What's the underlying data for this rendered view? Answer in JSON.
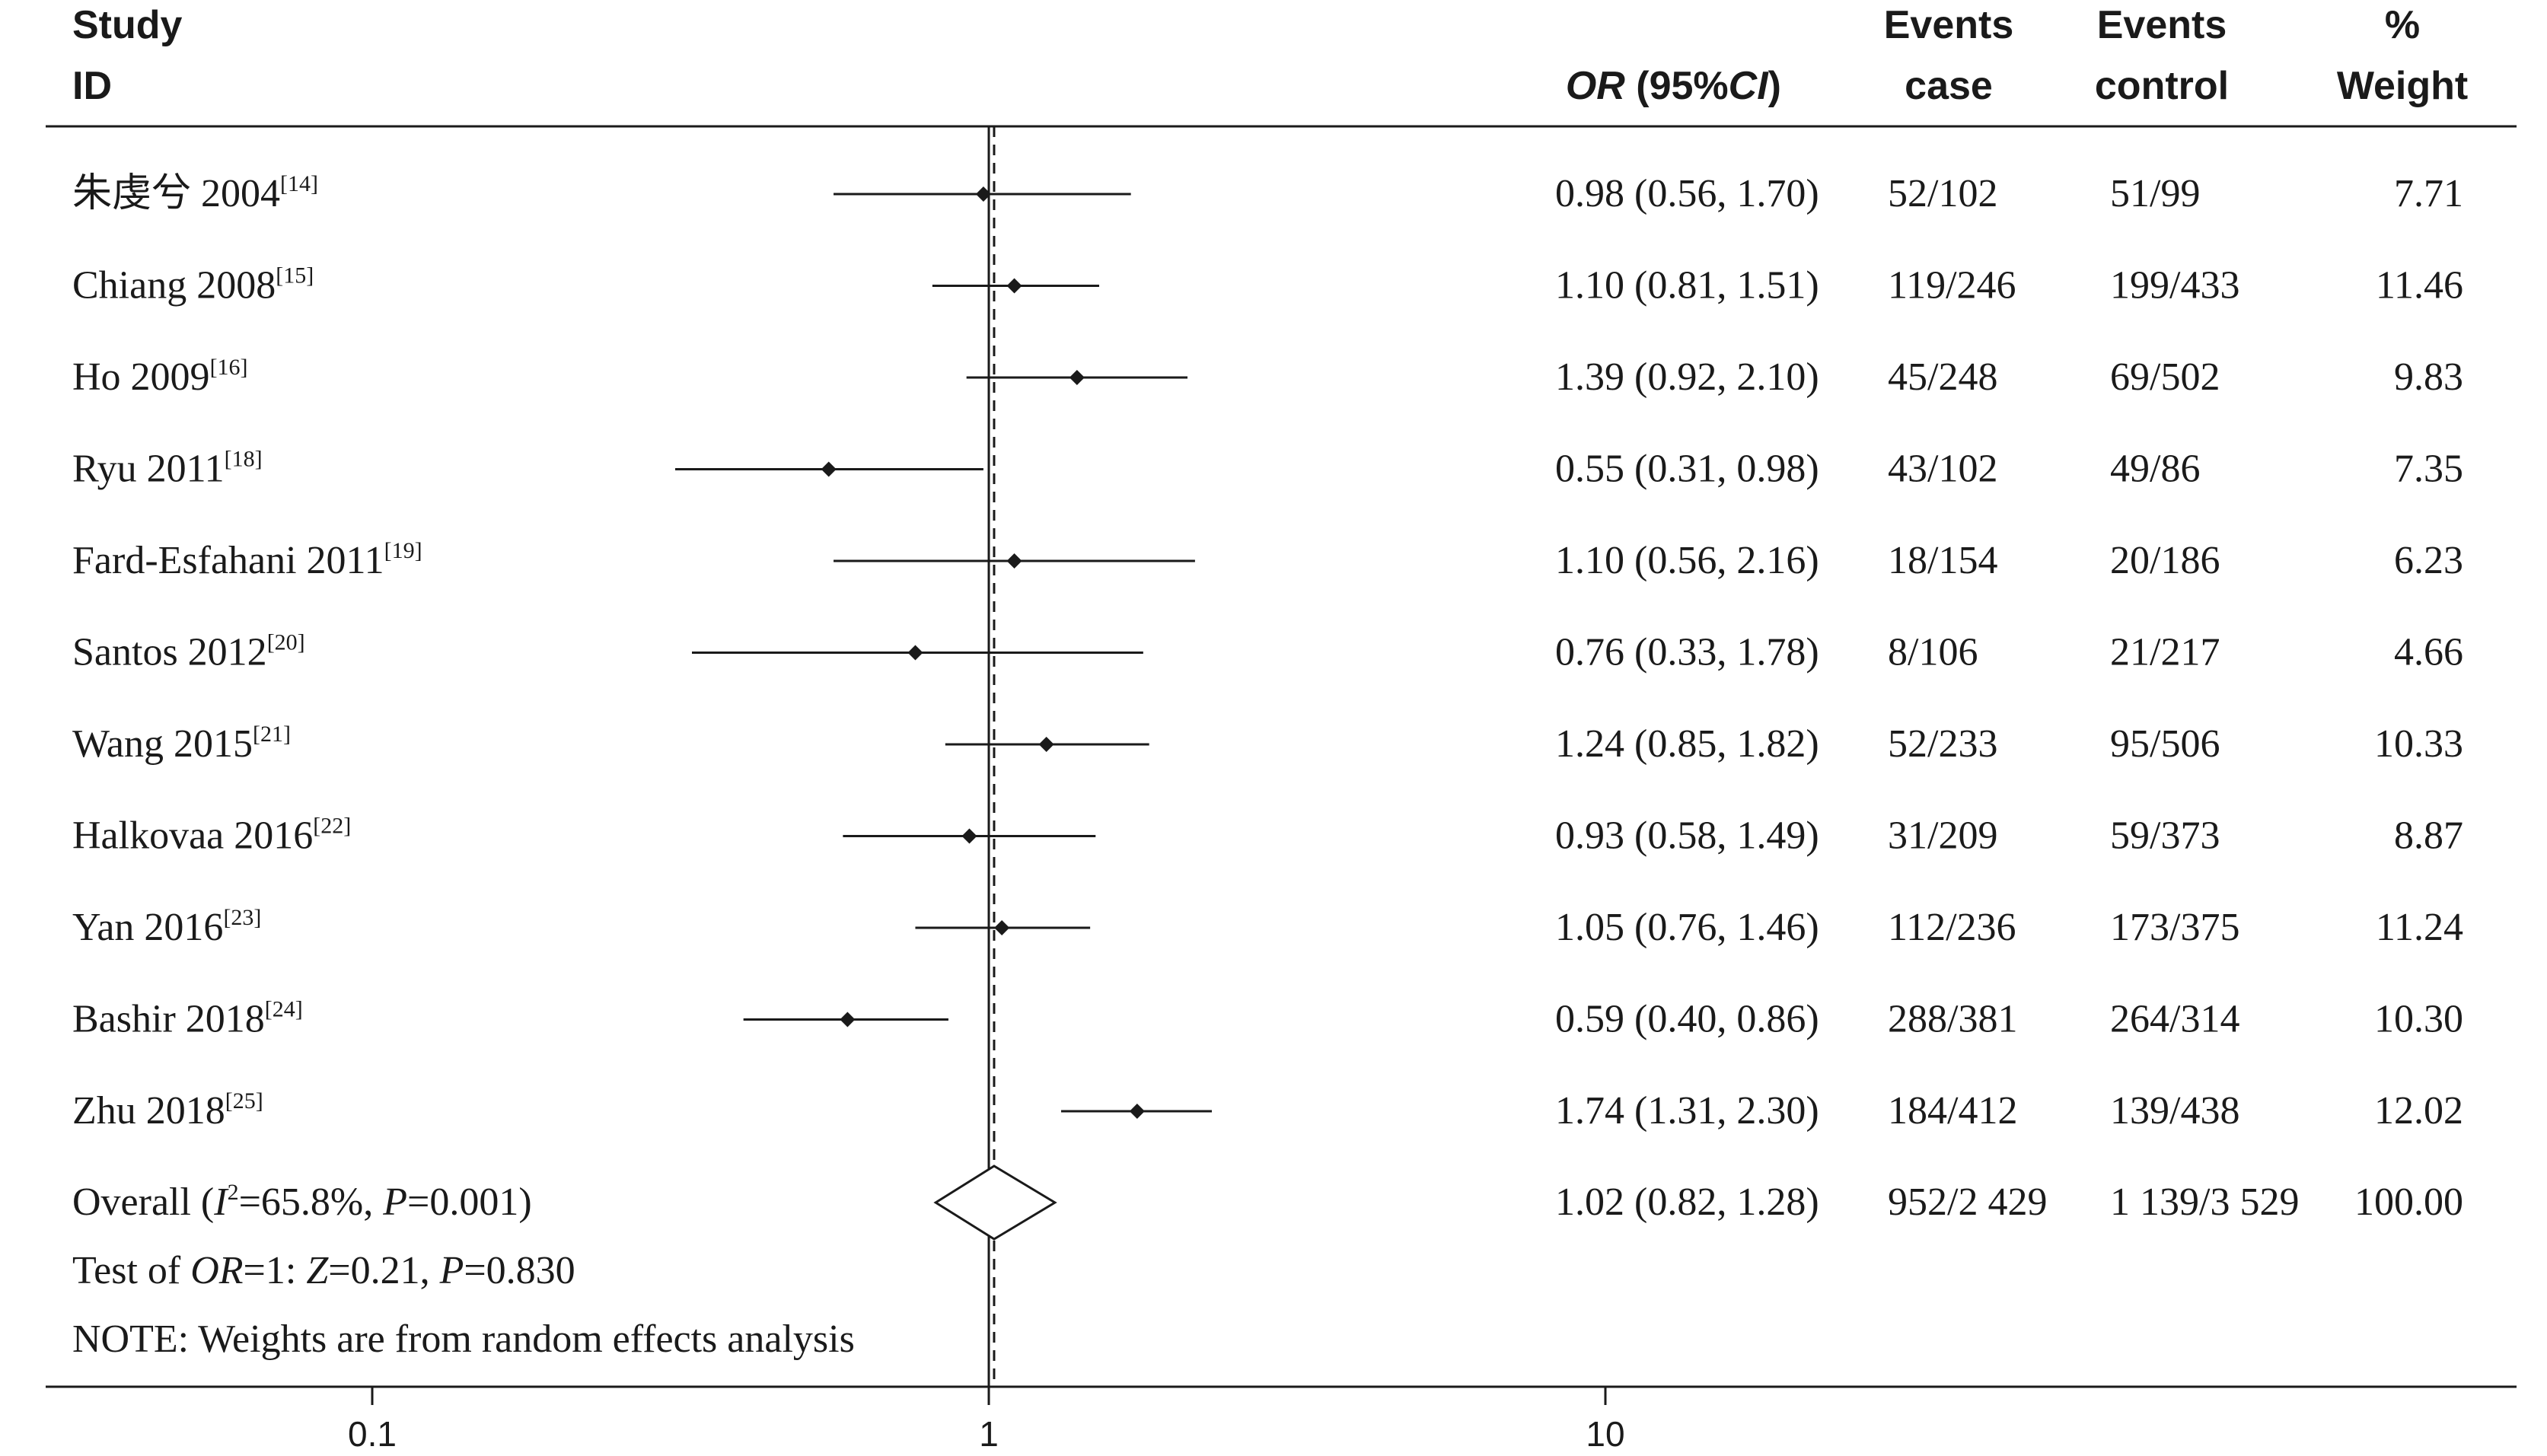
{
  "chart_data": {
    "type": "forest",
    "scale": "log",
    "xlim": [
      0.1,
      10
    ],
    "x_ticks": [
      {
        "value": 0.1,
        "label": "0.1"
      },
      {
        "value": 1,
        "label": "1"
      },
      {
        "value": 10,
        "label": "10"
      }
    ],
    "null_line": 1,
    "header": {
      "study": "Study",
      "id": "ID",
      "or_label_italic": "OR",
      "or_label_rest": " (95%",
      "ci_italic": "CI",
      "or_label_close": ")",
      "events_case_1": "Events",
      "events_case_2": "case",
      "events_control_1": "Events",
      "events_control_2": "control",
      "weight_1": "%",
      "weight_2": "Weight"
    },
    "studies": [
      {
        "name": "朱虔兮 2004",
        "ref": "[14]",
        "or": 0.98,
        "lo": 0.56,
        "hi": 1.7,
        "or_text": "0.98 (0.56, 1.70)",
        "case": "52/102",
        "control": "51/99",
        "weight": "7.71"
      },
      {
        "name": "Chiang 2008",
        "ref": "[15]",
        "or": 1.1,
        "lo": 0.81,
        "hi": 1.51,
        "or_text": "1.10 (0.81, 1.51)",
        "case": "119/246",
        "control": "199/433",
        "weight": "11.46"
      },
      {
        "name": "Ho 2009",
        "ref": "[16]",
        "or": 1.39,
        "lo": 0.92,
        "hi": 2.1,
        "or_text": "1.39 (0.92, 2.10)",
        "case": "45/248",
        "control": "69/502",
        "weight": "9.83"
      },
      {
        "name": "Ryu 2011",
        "ref": "[18]",
        "or": 0.55,
        "lo": 0.31,
        "hi": 0.98,
        "or_text": "0.55 (0.31, 0.98)",
        "case": "43/102",
        "control": "49/86",
        "weight": "7.35"
      },
      {
        "name": "Fard-Esfahani 2011",
        "ref": "[19]",
        "or": 1.1,
        "lo": 0.56,
        "hi": 2.16,
        "or_text": "1.10 (0.56, 2.16)",
        "case": "18/154",
        "control": "20/186",
        "weight": "6.23"
      },
      {
        "name": "Santos 2012",
        "ref": "[20]",
        "or": 0.76,
        "lo": 0.33,
        "hi": 1.78,
        "or_text": "0.76 (0.33, 1.78)",
        "case": "8/106",
        "control": "21/217",
        "weight": "4.66"
      },
      {
        "name": "Wang 2015",
        "ref": "[21]",
        "or": 1.24,
        "lo": 0.85,
        "hi": 1.82,
        "or_text": "1.24 (0.85, 1.82)",
        "case": "52/233",
        "control": "95/506",
        "weight": "10.33"
      },
      {
        "name": "Halkovaa 2016",
        "ref": "[22]",
        "or": 0.93,
        "lo": 0.58,
        "hi": 1.49,
        "or_text": "0.93 (0.58, 1.49)",
        "case": "31/209",
        "control": "59/373",
        "weight": "8.87"
      },
      {
        "name": "Yan 2016",
        "ref": "[23]",
        "or": 1.05,
        "lo": 0.76,
        "hi": 1.46,
        "or_text": "1.05 (0.76, 1.46)",
        "case": "112/236",
        "control": "173/375",
        "weight": "11.24"
      },
      {
        "name": "Bashir 2018",
        "ref": "[24]",
        "or": 0.59,
        "lo": 0.4,
        "hi": 0.86,
        "or_text": "0.59 (0.40, 0.86)",
        "case": "288/381",
        "control": "264/314",
        "weight": "10.30"
      },
      {
        "name": "Zhu 2018",
        "ref": "[25]",
        "or": 1.74,
        "lo": 1.31,
        "hi": 2.3,
        "or_text": "1.74 (1.31, 2.30)",
        "case": "184/412",
        "control": "139/438",
        "weight": "12.02"
      }
    ],
    "overall": {
      "label_pre": "Overall  (",
      "i_sym": "I",
      "i_sup": "2",
      "label_mid": "=65.8%, ",
      "p_sym": "P",
      "label_end": "=0.001)",
      "or": 1.02,
      "lo": 0.82,
      "hi": 1.28,
      "or_text": "1.02 (0.82, 1.28)",
      "case": "952/2 429",
      "control": "1 139/3 529",
      "weight": "100.00"
    },
    "test": {
      "pre": "Test of ",
      "or_sym": "OR",
      "mid1": "=1: ",
      "z_sym": "Z",
      "mid2": "=0.21, ",
      "p_sym": "P",
      "end": "=0.830"
    },
    "note": "NOTE: Weights are from random effects analysis"
  }
}
